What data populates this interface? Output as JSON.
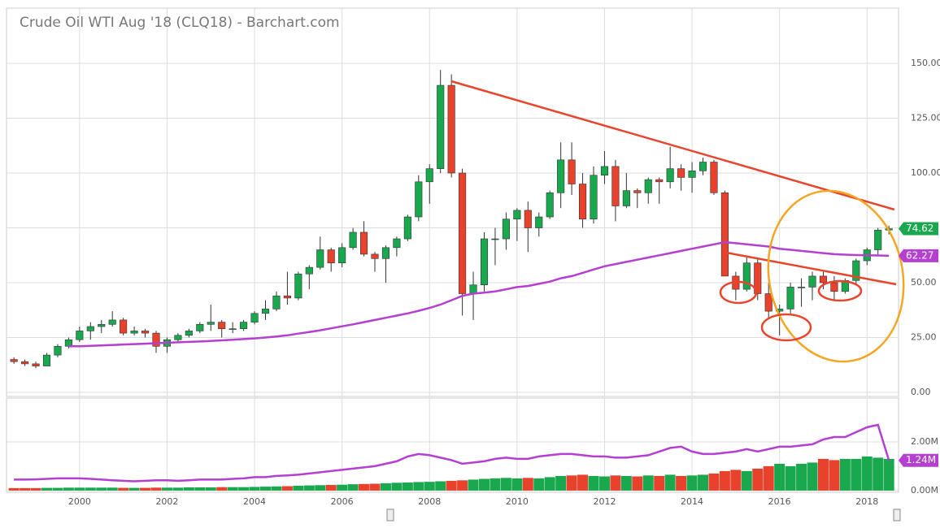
{
  "chart_data": [
    {
      "type": "candlestick",
      "title": "Crude Oil WTI Aug '18 (CLQ18) - Barchart.com",
      "x": [
        1998.5,
        1998.75,
        1999,
        1999.25,
        1999.5,
        1999.75,
        2000,
        2000.25,
        2000.5,
        2000.75,
        2001,
        2001.25,
        2001.5,
        2001.75,
        2002,
        2002.25,
        2002.5,
        2002.75,
        2003,
        2003.25,
        2003.5,
        2003.75,
        2004,
        2004.25,
        2004.5,
        2004.75,
        2005,
        2005.25,
        2005.5,
        2005.75,
        2006,
        2006.25,
        2006.5,
        2006.75,
        2007,
        2007.25,
        2007.5,
        2007.75,
        2008,
        2008.25,
        2008.5,
        2008.75,
        2009,
        2009.25,
        2009.5,
        2009.75,
        2010,
        2010.25,
        2010.5,
        2010.75,
        2011,
        2011.25,
        2011.5,
        2011.75,
        2012,
        2012.25,
        2012.5,
        2012.75,
        2013,
        2013.25,
        2013.5,
        2013.75,
        2014,
        2014.25,
        2014.5,
        2014.75,
        2015,
        2015.25,
        2015.5,
        2015.75,
        2016,
        2016.25,
        2016.5,
        2016.75,
        2017,
        2017.25,
        2017.5,
        2017.75,
        2018,
        2018.25,
        2018.5
      ],
      "open": [
        15,
        14,
        13,
        12,
        17,
        21,
        24,
        28,
        30,
        31,
        33,
        27,
        28,
        27,
        21,
        24,
        26,
        28,
        31,
        32,
        29,
        29,
        32,
        36,
        38,
        44,
        43,
        54,
        57,
        65,
        59,
        66,
        73,
        63,
        61,
        66,
        70,
        80,
        96,
        102,
        140,
        100,
        45,
        49,
        70,
        70,
        79,
        83,
        75,
        80,
        91,
        106,
        95,
        79,
        99,
        103,
        85,
        92,
        91,
        97,
        96,
        102,
        98,
        101,
        105,
        91,
        53,
        47,
        59,
        45,
        37,
        38,
        48,
        48,
        53,
        50,
        46,
        51,
        60,
        65,
        74
      ],
      "high": [
        16,
        15,
        14,
        18,
        22,
        25,
        30,
        32,
        33,
        37,
        34,
        30,
        29,
        28,
        25,
        27,
        29,
        32,
        40,
        33,
        32,
        33,
        37,
        42,
        46,
        55,
        55,
        58,
        71,
        66,
        68,
        75,
        78,
        64,
        67,
        71,
        81,
        99,
        104,
        147,
        145,
        102,
        55,
        73,
        75,
        82,
        84,
        87,
        82,
        92,
        114,
        114,
        100,
        103,
        110,
        106,
        100,
        93,
        98,
        98,
        112,
        104,
        105,
        107,
        106,
        92,
        55,
        62,
        61,
        50,
        40,
        50,
        52,
        55,
        55,
        53,
        52,
        61,
        66,
        75,
        76
      ],
      "low": [
        13,
        12,
        11,
        12,
        16,
        20,
        23,
        24,
        27,
        30,
        26,
        26,
        25,
        18,
        18,
        23,
        25,
        27,
        28,
        25,
        27,
        28,
        31,
        33,
        37,
        40,
        42,
        47,
        56,
        55,
        57,
        65,
        62,
        55,
        50,
        62,
        69,
        78,
        86,
        100,
        98,
        35,
        33,
        46,
        58,
        65,
        69,
        64,
        71,
        79,
        84,
        90,
        75,
        77,
        95,
        78,
        84,
        84,
        86,
        86,
        93,
        92,
        91,
        99,
        90,
        53,
        42,
        46,
        42,
        34,
        26,
        36,
        39,
        42,
        47,
        42,
        45,
        49,
        58,
        62,
        72
      ],
      "close": [
        14,
        13,
        12,
        17,
        21,
        24,
        28,
        30,
        31,
        33,
        27,
        28,
        27,
        21,
        24,
        26,
        28,
        31,
        32,
        29,
        29,
        32,
        36,
        38,
        44,
        43,
        54,
        57,
        65,
        59,
        66,
        73,
        63,
        61,
        66,
        70,
        80,
        96,
        102,
        140,
        100,
        45,
        49,
        70,
        70,
        79,
        83,
        75,
        80,
        91,
        106,
        95,
        79,
        99,
        103,
        85,
        92,
        91,
        97,
        96,
        102,
        98,
        101,
        105,
        91,
        53,
        47,
        59,
        45,
        37,
        38,
        48,
        48,
        53,
        50,
        46,
        51,
        60,
        65,
        74,
        74.62
      ],
      "close_label": "74.62",
      "up_color": "#1aa84f",
      "down_color": "#e8412c",
      "ma": {
        "color": "#b43fd0",
        "value_label": "62.27",
        "values": [
          null,
          null,
          null,
          null,
          null,
          21,
          21,
          21.2,
          21.4,
          21.6,
          21.8,
          22,
          22.2,
          22.4,
          22.6,
          22.8,
          23,
          23.2,
          23.4,
          23.7,
          24,
          24.3,
          24.6,
          25,
          25.5,
          26,
          26.8,
          27.5,
          28.3,
          29.2,
          30.1,
          31,
          32,
          33,
          34,
          35,
          36,
          37.2,
          38.5,
          40,
          42,
          44,
          45,
          45.5,
          46,
          47,
          48,
          48.5,
          49.5,
          50.5,
          52,
          53,
          54.5,
          56,
          57.5,
          58.5,
          59.5,
          60.5,
          61.5,
          62.5,
          63.5,
          64.5,
          65.5,
          66.5,
          67.5,
          68.5,
          68,
          67.5,
          67,
          66.5,
          65.5,
          65,
          64.5,
          64,
          63.5,
          63,
          62.8,
          62.6,
          62.5,
          62.4,
          62.27
        ]
      },
      "xlim": [
        1998.33,
        2018.72
      ],
      "ylim": [
        -1.85,
        175.2
      ],
      "yticks": [
        {
          "value": 0,
          "label": "0.00"
        },
        {
          "value": 25,
          "label": "25.00"
        },
        {
          "value": 50,
          "label": "50.00"
        },
        {
          "value": 75,
          "label": "75.00"
        },
        {
          "value": 100,
          "label": "100.00"
        },
        {
          "value": 125,
          "label": "125.00"
        },
        {
          "value": 150,
          "label": "150.00"
        }
      ],
      "grid": true
    },
    {
      "type": "bar",
      "values": [
        0.1,
        0.1,
        0.1,
        0.11,
        0.11,
        0.12,
        0.12,
        0.12,
        0.12,
        0.12,
        0.11,
        0.11,
        0.11,
        0.12,
        0.12,
        0.12,
        0.13,
        0.13,
        0.13,
        0.14,
        0.14,
        0.14,
        0.15,
        0.16,
        0.17,
        0.18,
        0.2,
        0.21,
        0.22,
        0.23,
        0.24,
        0.26,
        0.27,
        0.28,
        0.3,
        0.32,
        0.33,
        0.35,
        0.36,
        0.38,
        0.4,
        0.42,
        0.45,
        0.48,
        0.5,
        0.52,
        0.5,
        0.52,
        0.5,
        0.55,
        0.6,
        0.62,
        0.65,
        0.6,
        0.58,
        0.62,
        0.6,
        0.58,
        0.62,
        0.6,
        0.65,
        0.6,
        0.62,
        0.65,
        0.7,
        0.8,
        0.85,
        0.8,
        0.9,
        1.0,
        1.1,
        1.0,
        1.1,
        1.15,
        1.3,
        1.25,
        1.3,
        1.3,
        1.4,
        1.35,
        1.3
      ],
      "ma": {
        "color": "#b43fd0",
        "value_label": "1.24M",
        "values": [
          0.45,
          0.45,
          0.46,
          0.48,
          0.5,
          0.5,
          0.5,
          0.48,
          0.45,
          0.42,
          0.4,
          0.38,
          0.4,
          0.42,
          0.42,
          0.4,
          0.42,
          0.45,
          0.45,
          0.45,
          0.48,
          0.5,
          0.55,
          0.55,
          0.6,
          0.62,
          0.65,
          0.7,
          0.75,
          0.8,
          0.85,
          0.9,
          0.95,
          1.0,
          1.1,
          1.2,
          1.4,
          1.5,
          1.45,
          1.35,
          1.25,
          1.1,
          1.15,
          1.2,
          1.3,
          1.35,
          1.3,
          1.3,
          1.4,
          1.45,
          1.5,
          1.5,
          1.45,
          1.4,
          1.4,
          1.35,
          1.35,
          1.4,
          1.45,
          1.6,
          1.75,
          1.8,
          1.6,
          1.5,
          1.5,
          1.55,
          1.6,
          1.7,
          1.6,
          1.7,
          1.8,
          1.8,
          1.85,
          1.9,
          2.1,
          2.2,
          2.2,
          2.4,
          2.6,
          2.7,
          1.24
        ]
      },
      "ylim": [
        -0.07,
        3.8
      ],
      "yticks": [
        {
          "value": 0,
          "label": "0.00M"
        },
        {
          "value": 2,
          "label": "2.00M"
        }
      ],
      "xticks": [
        2000,
        2002,
        2004,
        2006,
        2008,
        2010,
        2012,
        2014,
        2016,
        2018
      ],
      "grid": true
    }
  ]
}
